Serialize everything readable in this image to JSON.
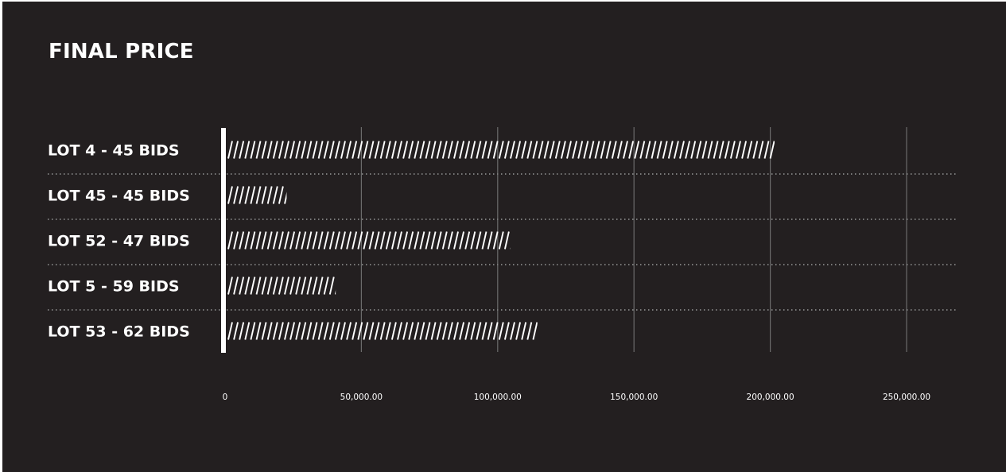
{
  "chart_data": {
    "type": "bar",
    "orientation": "horizontal",
    "title": "FINAL PRICE",
    "categories": [
      "LOT 4 - 45 BIDS",
      "LOT 45 - 45 BIDS",
      "LOT 52 - 47 BIDS",
      "LOT 5 - 59 BIDS",
      "LOT 53 - 62 BIDS"
    ],
    "values": [
      201000,
      22000,
      104000,
      40000,
      114000
    ],
    "xlim": [
      0,
      250000
    ],
    "xticks": [
      0,
      50000,
      100000,
      150000,
      200000,
      250000
    ],
    "xtick_labels": [
      "0",
      "50,000.00",
      "100,000.00",
      "150,000.00",
      "200,000.00",
      "250,000.00"
    ],
    "xlabel": "",
    "ylabel": "",
    "grid": true,
    "legend": "none",
    "colors": {
      "background": "#231f20",
      "bar": "#ffffff",
      "text": "#ffffff",
      "gridline": "#6b6b6b",
      "separator": "#7a7a7a"
    }
  }
}
